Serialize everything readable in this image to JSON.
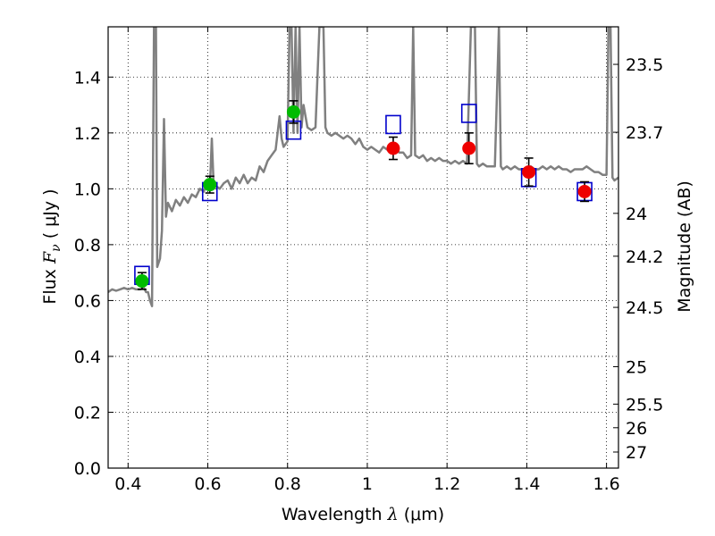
{
  "chart_data": {
    "type": "scatter",
    "xlabel": "Wavelength  λ (μm)",
    "xlabel_parts": {
      "text": "Wavelength  ",
      "symbol": "λ",
      "unit": " (μm)"
    },
    "ylabel": "Flux  Fν ( μJy )",
    "ylabel_parts": {
      "text": "Flux  ",
      "symbol": "F",
      "subscript": "ν",
      "unit": "  ( μJy )"
    },
    "y2label": "Magnitude (AB)",
    "xlim": [
      0.35,
      1.63
    ],
    "ylim": [
      0.0,
      1.58
    ],
    "grid": true,
    "grid_style": "dotted",
    "x_ticks": [
      {
        "value": 0.4,
        "label": "0.4"
      },
      {
        "value": 0.6,
        "label": "0.6"
      },
      {
        "value": 0.8,
        "label": "0.8"
      },
      {
        "value": 1.0,
        "label": "1"
      },
      {
        "value": 1.2,
        "label": "1.2"
      },
      {
        "value": 1.4,
        "label": "1.4"
      },
      {
        "value": 1.6,
        "label": "1.6"
      }
    ],
    "y_ticks": [
      {
        "value": 0.0,
        "label": "0.0"
      },
      {
        "value": 0.2,
        "label": "0.2"
      },
      {
        "value": 0.4,
        "label": "0.4"
      },
      {
        "value": 0.6,
        "label": "0.6"
      },
      {
        "value": 0.8,
        "label": "0.8"
      },
      {
        "value": 1.0,
        "label": "1.0"
      },
      {
        "value": 1.2,
        "label": "1.2"
      },
      {
        "value": 1.4,
        "label": "1.4"
      }
    ],
    "y2_ticks": [
      {
        "mag": 23.5,
        "label": "23.5"
      },
      {
        "mag": 23.7,
        "label": "23.7"
      },
      {
        "mag": 24.0,
        "label": "24"
      },
      {
        "mag": 24.2,
        "label": "24.2"
      },
      {
        "mag": 24.5,
        "label": "24.5"
      },
      {
        "mag": 25.0,
        "label": "25"
      },
      {
        "mag": 25.5,
        "label": "25.5"
      },
      {
        "mag": 26.0,
        "label": "26"
      },
      {
        "mag": 27.0,
        "label": "27"
      }
    ],
    "ab_zero_point_uJy": 3631000000,
    "colors": {
      "spectrum": "#808080",
      "model_box": "#0000cc",
      "green_point": "#00bb00",
      "red_point": "#ee0000",
      "error_bar": "#000000"
    },
    "series": [
      {
        "kind": "spectrum",
        "line": [
          [
            0.35,
            0.63
          ],
          [
            0.36,
            0.64
          ],
          [
            0.37,
            0.635
          ],
          [
            0.38,
            0.64
          ],
          [
            0.39,
            0.645
          ],
          [
            0.4,
            0.64
          ],
          [
            0.41,
            0.645
          ],
          [
            0.42,
            0.64
          ],
          [
            0.43,
            0.64
          ],
          [
            0.44,
            0.645
          ],
          [
            0.445,
            0.63
          ],
          [
            0.45,
            0.63
          ],
          [
            0.455,
            0.6
          ],
          [
            0.46,
            0.58
          ],
          [
            0.465,
            1.58
          ],
          [
            0.47,
            1.58
          ],
          [
            0.473,
            0.72
          ],
          [
            0.48,
            0.75
          ],
          [
            0.485,
            0.85
          ],
          [
            0.49,
            1.25
          ],
          [
            0.495,
            0.9
          ],
          [
            0.5,
            0.95
          ],
          [
            0.51,
            0.92
          ],
          [
            0.52,
            0.96
          ],
          [
            0.53,
            0.94
          ],
          [
            0.54,
            0.97
          ],
          [
            0.55,
            0.95
          ],
          [
            0.56,
            0.98
          ],
          [
            0.57,
            0.97
          ],
          [
            0.58,
            1.0
          ],
          [
            0.59,
            0.99
          ],
          [
            0.6,
            1.03
          ],
          [
            0.605,
            1.0
          ],
          [
            0.61,
            1.18
          ],
          [
            0.615,
            1.0
          ],
          [
            0.62,
            1.01
          ],
          [
            0.63,
            1.0
          ],
          [
            0.64,
            1.02
          ],
          [
            0.65,
            1.03
          ],
          [
            0.66,
            1.0
          ],
          [
            0.67,
            1.04
          ],
          [
            0.68,
            1.02
          ],
          [
            0.69,
            1.05
          ],
          [
            0.7,
            1.02
          ],
          [
            0.71,
            1.04
          ],
          [
            0.72,
            1.03
          ],
          [
            0.73,
            1.08
          ],
          [
            0.74,
            1.06
          ],
          [
            0.75,
            1.1
          ],
          [
            0.76,
            1.12
          ],
          [
            0.77,
            1.14
          ],
          [
            0.78,
            1.26
          ],
          [
            0.785,
            1.18
          ],
          [
            0.79,
            1.15
          ],
          [
            0.8,
            1.17
          ],
          [
            0.805,
            1.58
          ],
          [
            0.81,
            1.58
          ],
          [
            0.815,
            1.2
          ],
          [
            0.82,
            1.58
          ],
          [
            0.825,
            1.2
          ],
          [
            0.83,
            1.58
          ],
          [
            0.835,
            1.22
          ],
          [
            0.84,
            1.3
          ],
          [
            0.85,
            1.22
          ],
          [
            0.86,
            1.21
          ],
          [
            0.87,
            1.22
          ],
          [
            0.88,
            1.58
          ],
          [
            0.885,
            1.58
          ],
          [
            0.89,
            1.58
          ],
          [
            0.895,
            1.22
          ],
          [
            0.9,
            1.2
          ],
          [
            0.91,
            1.19
          ],
          [
            0.92,
            1.2
          ],
          [
            0.93,
            1.19
          ],
          [
            0.94,
            1.18
          ],
          [
            0.95,
            1.19
          ],
          [
            0.96,
            1.18
          ],
          [
            0.97,
            1.16
          ],
          [
            0.98,
            1.18
          ],
          [
            0.99,
            1.15
          ],
          [
            1.0,
            1.14
          ],
          [
            1.01,
            1.15
          ],
          [
            1.02,
            1.14
          ],
          [
            1.03,
            1.13
          ],
          [
            1.04,
            1.15
          ],
          [
            1.05,
            1.14
          ],
          [
            1.06,
            1.14
          ],
          [
            1.07,
            1.15
          ],
          [
            1.08,
            1.13
          ],
          [
            1.09,
            1.13
          ],
          [
            1.1,
            1.11
          ],
          [
            1.11,
            1.12
          ],
          [
            1.115,
            1.58
          ],
          [
            1.12,
            1.12
          ],
          [
            1.13,
            1.11
          ],
          [
            1.14,
            1.12
          ],
          [
            1.15,
            1.1
          ],
          [
            1.16,
            1.11
          ],
          [
            1.17,
            1.1
          ],
          [
            1.18,
            1.11
          ],
          [
            1.19,
            1.1
          ],
          [
            1.2,
            1.1
          ],
          [
            1.21,
            1.09
          ],
          [
            1.22,
            1.1
          ],
          [
            1.23,
            1.09
          ],
          [
            1.24,
            1.1
          ],
          [
            1.25,
            1.09
          ],
          [
            1.26,
            1.58
          ],
          [
            1.265,
            1.58
          ],
          [
            1.27,
            1.58
          ],
          [
            1.275,
            1.09
          ],
          [
            1.28,
            1.08
          ],
          [
            1.29,
            1.09
          ],
          [
            1.3,
            1.08
          ],
          [
            1.31,
            1.08
          ],
          [
            1.32,
            1.08
          ],
          [
            1.33,
            1.58
          ],
          [
            1.335,
            1.08
          ],
          [
            1.34,
            1.07
          ],
          [
            1.35,
            1.08
          ],
          [
            1.36,
            1.07
          ],
          [
            1.37,
            1.08
          ],
          [
            1.38,
            1.07
          ],
          [
            1.39,
            1.07
          ],
          [
            1.4,
            1.07
          ],
          [
            1.41,
            1.08
          ],
          [
            1.42,
            1.07
          ],
          [
            1.43,
            1.07
          ],
          [
            1.44,
            1.08
          ],
          [
            1.45,
            1.07
          ],
          [
            1.46,
            1.08
          ],
          [
            1.47,
            1.07
          ],
          [
            1.48,
            1.08
          ],
          [
            1.49,
            1.07
          ],
          [
            1.5,
            1.07
          ],
          [
            1.51,
            1.06
          ],
          [
            1.52,
            1.07
          ],
          [
            1.53,
            1.07
          ],
          [
            1.54,
            1.07
          ],
          [
            1.55,
            1.08
          ],
          [
            1.56,
            1.07
          ],
          [
            1.57,
            1.06
          ],
          [
            1.58,
            1.06
          ],
          [
            1.59,
            1.05
          ],
          [
            1.6,
            1.05
          ],
          [
            1.605,
            1.58
          ],
          [
            1.61,
            1.58
          ],
          [
            1.615,
            1.04
          ],
          [
            1.62,
            1.03
          ],
          [
            1.63,
            1.04
          ]
        ]
      },
      {
        "kind": "model_boxes",
        "points": [
          {
            "x": 0.435,
            "y": 0.69
          },
          {
            "x": 0.605,
            "y": 0.99
          },
          {
            "x": 0.815,
            "y": 1.21
          },
          {
            "x": 1.065,
            "y": 1.23
          },
          {
            "x": 1.255,
            "y": 1.27
          },
          {
            "x": 1.405,
            "y": 1.04
          },
          {
            "x": 1.545,
            "y": 0.99
          }
        ]
      },
      {
        "kind": "photometry_green",
        "points": [
          {
            "x": 0.435,
            "y": 0.67,
            "err": 0.03
          },
          {
            "x": 0.605,
            "y": 1.015,
            "err": 0.03
          },
          {
            "x": 0.815,
            "y": 1.275,
            "err": 0.04
          }
        ]
      },
      {
        "kind": "photometry_red",
        "points": [
          {
            "x": 1.065,
            "y": 1.145,
            "err": 0.04
          },
          {
            "x": 1.255,
            "y": 1.145,
            "err": 0.055
          },
          {
            "x": 1.405,
            "y": 1.06,
            "err": 0.05
          },
          {
            "x": 1.545,
            "y": 0.99,
            "err": 0.035
          }
        ]
      }
    ]
  }
}
